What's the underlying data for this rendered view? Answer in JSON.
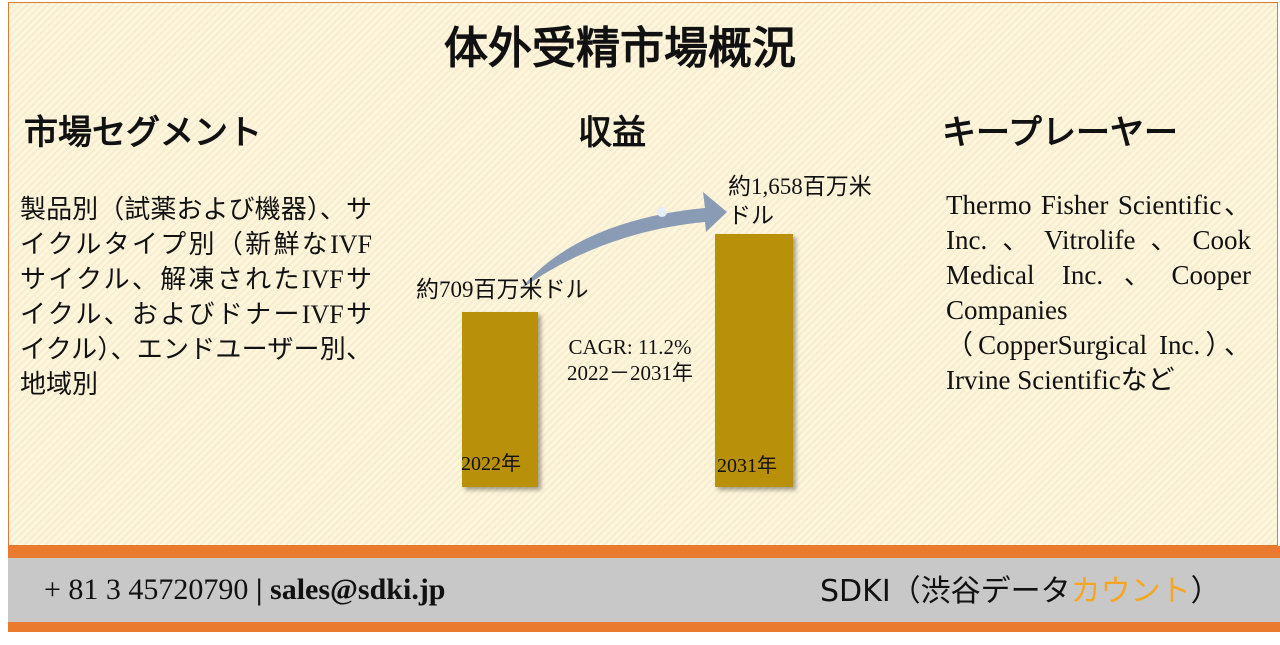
{
  "title": "体外受精市場概況",
  "segment": {
    "heading": "市場セグメント",
    "text": "製品別（試薬および機器）、サイクルタイプ別（新鮮なIVFサイクル、解凍されたIVFサイクル、およびドナーIVFサイクル）、エンドユーザー別、地域別"
  },
  "revenue": {
    "heading": "収益",
    "start_value": "約709百万米ドル",
    "end_value": "約1,658百万米ドル",
    "start_year": "2022年",
    "end_year": "2031年",
    "cagr": "CAGR: 11.2%",
    "period": "2022－2031年"
  },
  "players": {
    "heading": "キープレーヤー",
    "text": "Thermo Fisher Scientific、Inc.、Vitrolife、Cook Medical Inc.、Cooper Companies（CopperSurgical Inc.）、Irvine Scientificなど"
  },
  "footer": {
    "contact": "+ 81 3 45720790",
    "separator": "|",
    "email": "sales@sdki.jp",
    "brand_parts": [
      "SDKI（渋谷データ",
      "カウント",
      "）"
    ]
  }
}
